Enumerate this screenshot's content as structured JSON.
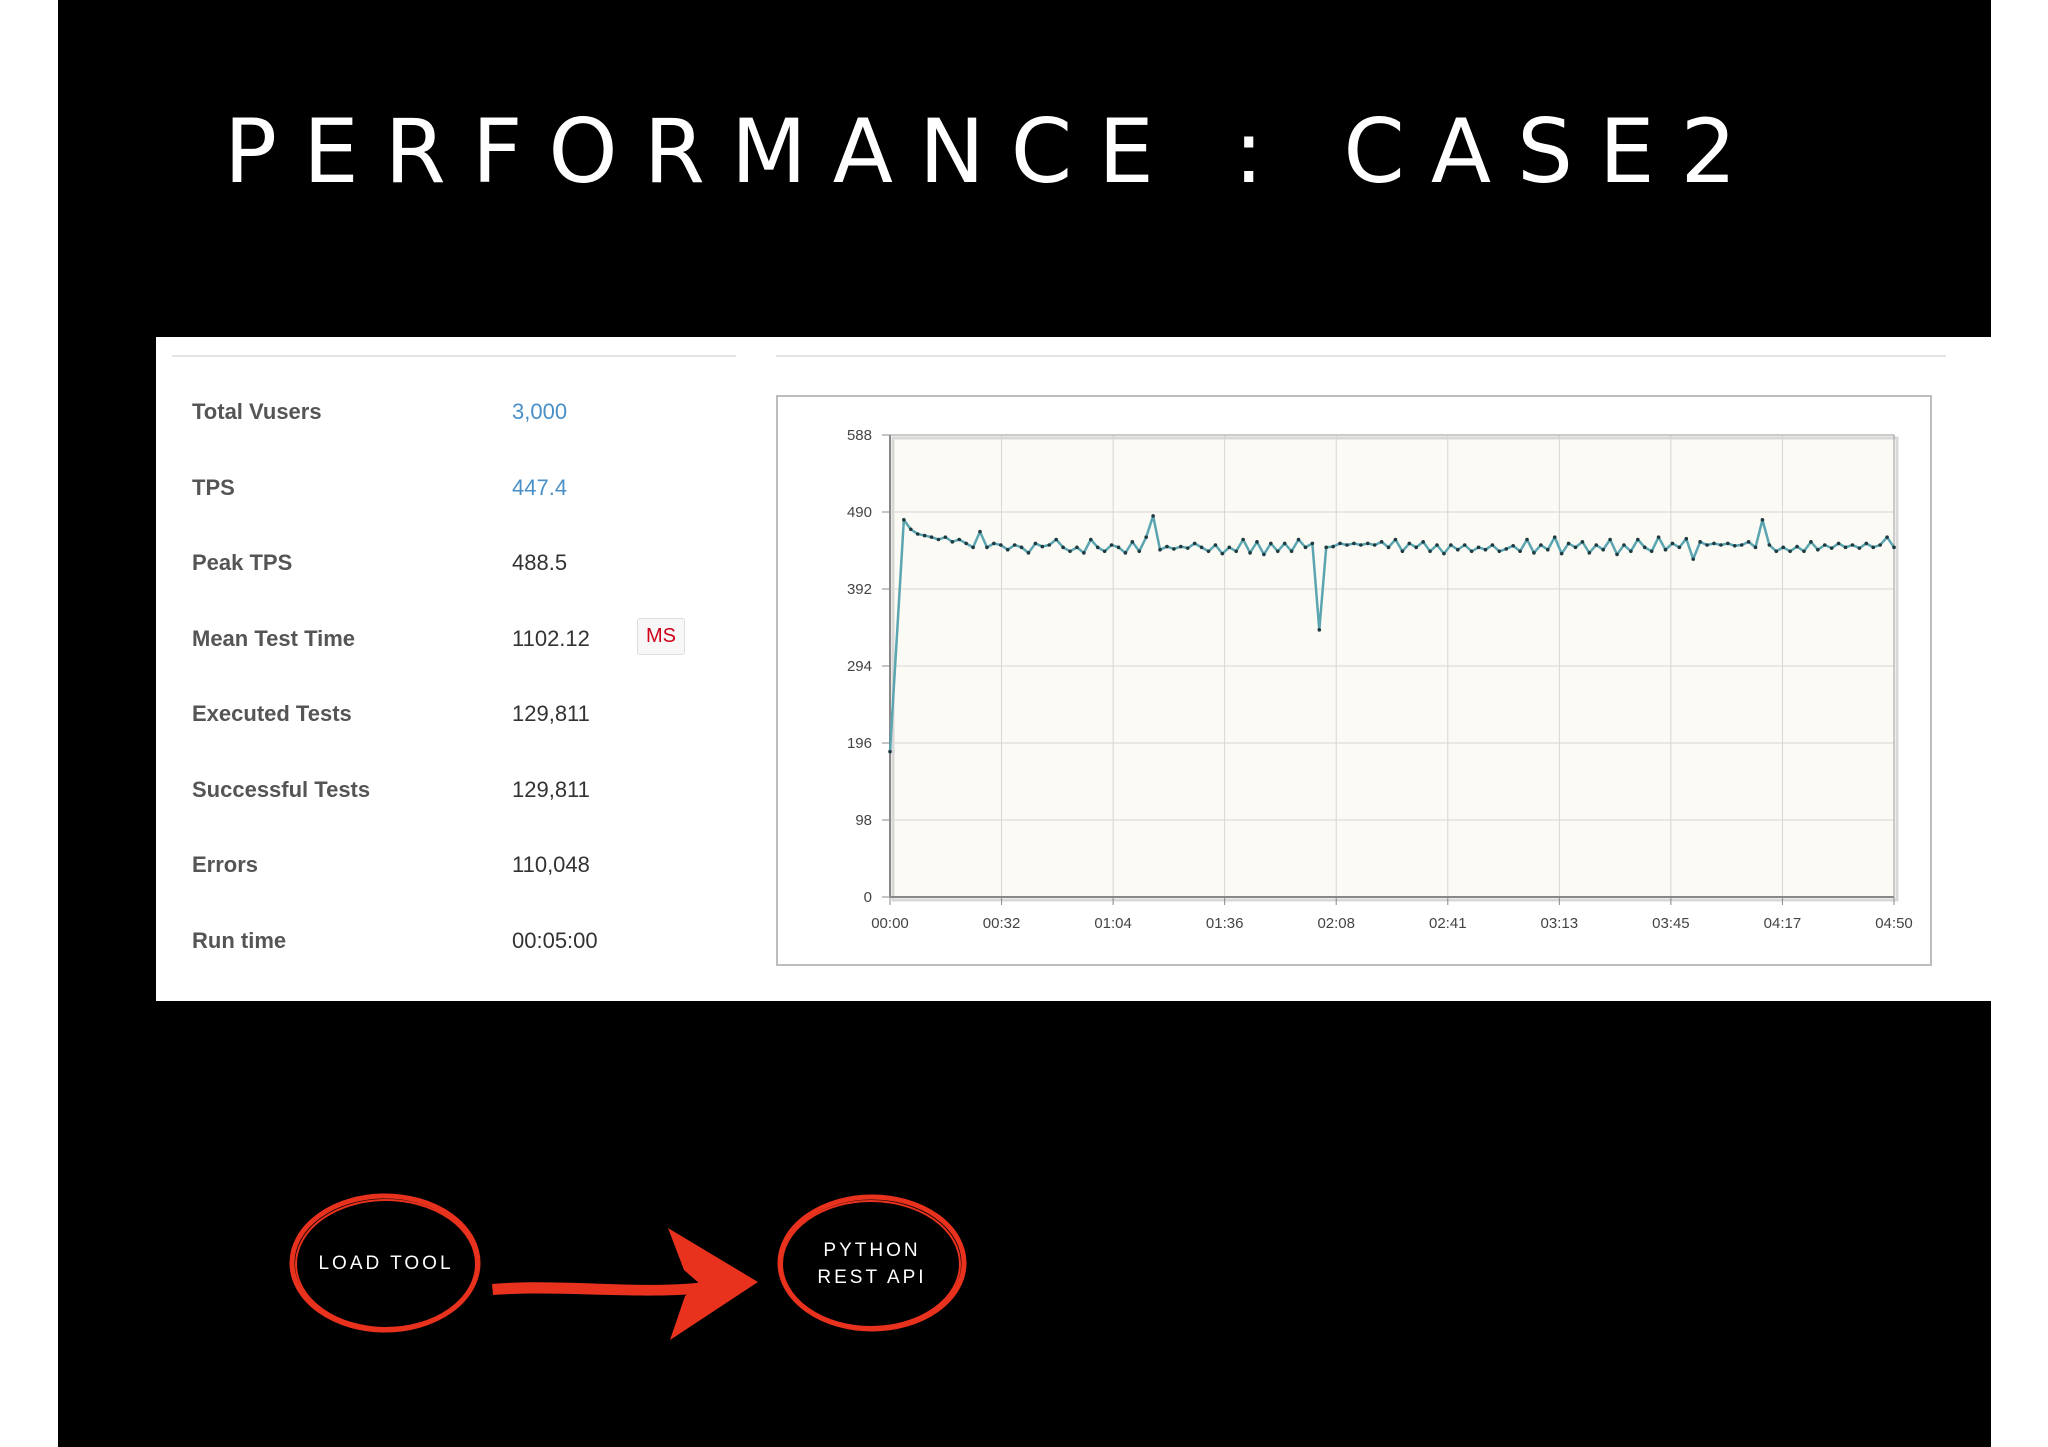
{
  "slide": {
    "title": "PERFORMANCE : CASE2"
  },
  "stats": [
    {
      "label": "Total Vusers",
      "value": "3,000",
      "style": "link"
    },
    {
      "label": "TPS",
      "value": "447.4",
      "style": "link"
    },
    {
      "label": "Peak TPS",
      "value": "488.5",
      "style": "plain"
    },
    {
      "label": "Mean Test Time",
      "value": "1102.12",
      "unit": "MS",
      "style": "plain"
    },
    {
      "label": "Executed Tests",
      "value": "129,811",
      "style": "plain"
    },
    {
      "label": "Successful Tests",
      "value": "129,811",
      "style": "plain"
    },
    {
      "label": "Errors",
      "value": "110,048",
      "style": "plain"
    },
    {
      "label": "Run time",
      "value": "00:05:00",
      "style": "plain"
    }
  ],
  "chart_data": {
    "type": "line",
    "title": "",
    "xlabel": "",
    "ylabel": "",
    "ylim": [
      0,
      588
    ],
    "yticks": [
      0,
      98,
      196,
      294,
      392,
      490,
      588
    ],
    "xtick_labels": [
      "00:00",
      "00:32",
      "01:04",
      "01:36",
      "02:08",
      "02:41",
      "03:13",
      "03:45",
      "04:17",
      "04:50"
    ],
    "x_unit": "seconds",
    "xlim": [
      0,
      290
    ],
    "grid": true,
    "colors": {
      "line": "#5aa5b0",
      "marker": "#1e3a40",
      "plot_bg": "#fcfaf4",
      "grid": "#d6d6d6"
    },
    "series": [
      {
        "values": [
          [
            0,
            185
          ],
          [
            4,
            480
          ],
          [
            6,
            468
          ],
          [
            8,
            462
          ],
          [
            10,
            460
          ],
          [
            12,
            458
          ],
          [
            14,
            455
          ],
          [
            16,
            458
          ],
          [
            18,
            452
          ],
          [
            20,
            455
          ],
          [
            22,
            450
          ],
          [
            24,
            445
          ],
          [
            26,
            465
          ],
          [
            28,
            445
          ],
          [
            30,
            450
          ],
          [
            32,
            448
          ],
          [
            34,
            442
          ],
          [
            36,
            448
          ],
          [
            38,
            445
          ],
          [
            40,
            438
          ],
          [
            42,
            450
          ],
          [
            44,
            446
          ],
          [
            46,
            448
          ],
          [
            48,
            455
          ],
          [
            50,
            445
          ],
          [
            52,
            440
          ],
          [
            54,
            445
          ],
          [
            56,
            438
          ],
          [
            58,
            455
          ],
          [
            60,
            445
          ],
          [
            62,
            440
          ],
          [
            64,
            448
          ],
          [
            66,
            445
          ],
          [
            68,
            438
          ],
          [
            70,
            452
          ],
          [
            72,
            440
          ],
          [
            74,
            458
          ],
          [
            76,
            485
          ],
          [
            78,
            442
          ],
          [
            80,
            446
          ],
          [
            82,
            443
          ],
          [
            84,
            446
          ],
          [
            86,
            444
          ],
          [
            88,
            450
          ],
          [
            90,
            445
          ],
          [
            92,
            440
          ],
          [
            94,
            448
          ],
          [
            96,
            437
          ],
          [
            98,
            445
          ],
          [
            100,
            440
          ],
          [
            102,
            455
          ],
          [
            104,
            438
          ],
          [
            106,
            452
          ],
          [
            108,
            436
          ],
          [
            110,
            450
          ],
          [
            112,
            440
          ],
          [
            114,
            450
          ],
          [
            116,
            440
          ],
          [
            118,
            455
          ],
          [
            120,
            445
          ],
          [
            122,
            450
          ],
          [
            124,
            340
          ],
          [
            126,
            445
          ],
          [
            128,
            446
          ],
          [
            130,
            450
          ],
          [
            132,
            448
          ],
          [
            134,
            450
          ],
          [
            136,
            448
          ],
          [
            138,
            450
          ],
          [
            140,
            448
          ],
          [
            142,
            452
          ],
          [
            144,
            445
          ],
          [
            146,
            455
          ],
          [
            148,
            440
          ],
          [
            150,
            450
          ],
          [
            152,
            445
          ],
          [
            154,
            452
          ],
          [
            156,
            440
          ],
          [
            158,
            448
          ],
          [
            160,
            437
          ],
          [
            162,
            448
          ],
          [
            164,
            442
          ],
          [
            166,
            448
          ],
          [
            168,
            440
          ],
          [
            170,
            445
          ],
          [
            172,
            442
          ],
          [
            174,
            448
          ],
          [
            176,
            440
          ],
          [
            178,
            443
          ],
          [
            180,
            447
          ],
          [
            182,
            440
          ],
          [
            184,
            455
          ],
          [
            186,
            438
          ],
          [
            188,
            448
          ],
          [
            190,
            442
          ],
          [
            192,
            458
          ],
          [
            194,
            437
          ],
          [
            196,
            450
          ],
          [
            198,
            445
          ],
          [
            200,
            452
          ],
          [
            202,
            438
          ],
          [
            204,
            448
          ],
          [
            206,
            442
          ],
          [
            208,
            455
          ],
          [
            210,
            436
          ],
          [
            212,
            448
          ],
          [
            214,
            440
          ],
          [
            216,
            455
          ],
          [
            218,
            445
          ],
          [
            220,
            440
          ],
          [
            222,
            458
          ],
          [
            224,
            442
          ],
          [
            226,
            450
          ],
          [
            228,
            445
          ],
          [
            230,
            456
          ],
          [
            232,
            430
          ],
          [
            234,
            452
          ],
          [
            236,
            448
          ],
          [
            238,
            450
          ],
          [
            240,
            448
          ],
          [
            242,
            450
          ],
          [
            244,
            447
          ],
          [
            246,
            448
          ],
          [
            248,
            452
          ],
          [
            250,
            445
          ],
          [
            252,
            480
          ],
          [
            254,
            448
          ],
          [
            256,
            440
          ],
          [
            258,
            445
          ],
          [
            260,
            440
          ],
          [
            262,
            446
          ],
          [
            264,
            440
          ],
          [
            266,
            452
          ],
          [
            268,
            442
          ],
          [
            270,
            448
          ],
          [
            272,
            444
          ],
          [
            274,
            450
          ],
          [
            276,
            445
          ],
          [
            278,
            448
          ],
          [
            280,
            444
          ],
          [
            282,
            450
          ],
          [
            284,
            445
          ],
          [
            286,
            448
          ],
          [
            288,
            458
          ],
          [
            290,
            445
          ]
        ]
      }
    ]
  },
  "flow": {
    "node1_label": "LOAD TOOL",
    "node2_line1": "PYTHON",
    "node2_line2": "REST API",
    "accent_color": "#e8321e"
  }
}
